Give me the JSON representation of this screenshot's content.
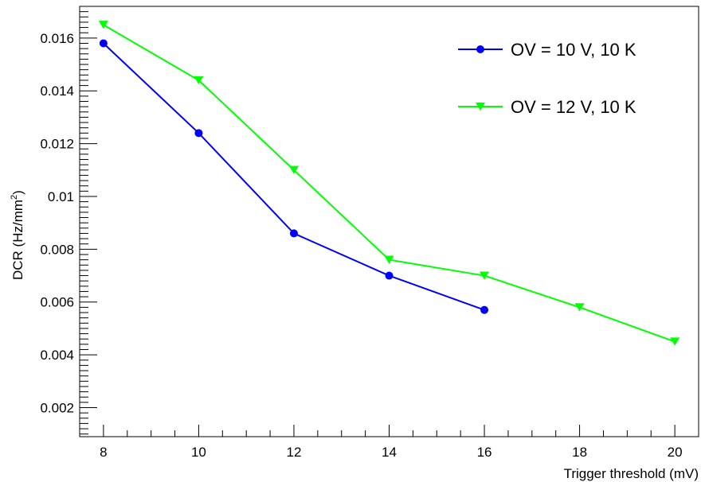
{
  "chart_data": {
    "type": "line",
    "xlabel": "Trigger threshold (mV)",
    "ylabel_main": "DCR (Hz/mm",
    "ylabel_sup": "2",
    "ylabel_close": ")",
    "xlim": [
      7.5,
      20.5
    ],
    "ylim": [
      0.0009,
      0.0172
    ],
    "x_ticks": [
      8,
      10,
      12,
      14,
      16,
      18,
      20
    ],
    "x_tick_labels": [
      "8",
      "10",
      "12",
      "14",
      "16",
      "18",
      "20"
    ],
    "y_ticks": [
      0.002,
      0.004,
      0.006,
      0.008,
      0.01,
      0.012,
      0.014,
      0.016
    ],
    "y_tick_labels": [
      "0.002",
      "0.004",
      "0.006",
      "0.008",
      "0.01",
      "0.012",
      "0.014",
      "0.016"
    ],
    "grid": false,
    "legend_position": "top-right",
    "series": [
      {
        "name": "OV = 10 V, 10 K",
        "color": "#0000ff",
        "marker": "circle",
        "x": [
          8,
          10,
          12,
          14,
          16
        ],
        "y": [
          0.0158,
          0.0124,
          0.0086,
          0.007,
          0.0057
        ]
      },
      {
        "name": "OV = 12 V, 10 K",
        "color": "#00ff00",
        "marker": "triangle-down",
        "x": [
          8,
          10,
          12,
          14,
          16,
          18,
          20
        ],
        "y": [
          0.0165,
          0.0144,
          0.011,
          0.0076,
          0.007,
          0.0058,
          0.0045
        ]
      }
    ]
  }
}
